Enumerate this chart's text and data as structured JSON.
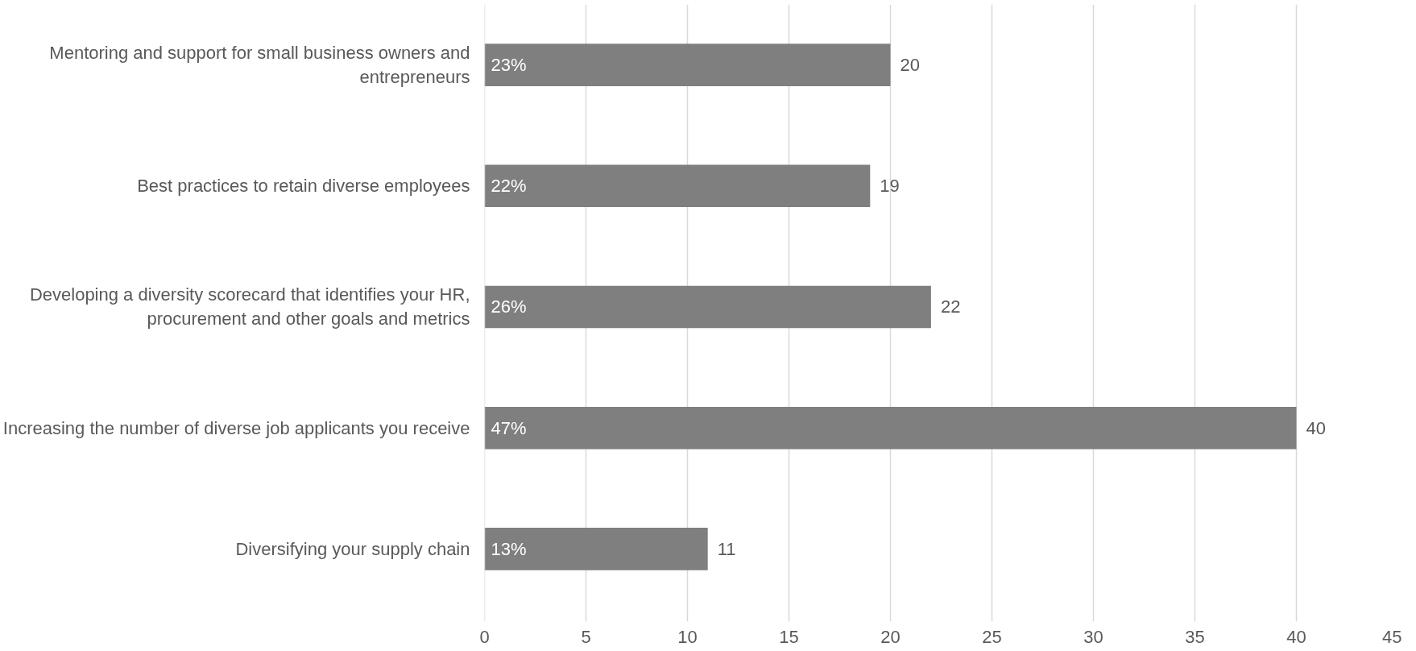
{
  "chart_data": {
    "type": "bar",
    "orientation": "horizontal",
    "categories": [
      "Mentoring and support for small business owners and entrepreneurs",
      "Best practices to retain diverse employees",
      "Developing a diversity scorecard that identifies your HR, procurement and other goals and metrics",
      "Increasing the number of diverse job applicants you receive",
      "Diversifying your supply chain"
    ],
    "values": [
      20,
      19,
      22,
      40,
      11
    ],
    "color": "#7f7f7f",
    "data_labels": true,
    "xlim": [
      0,
      45
    ],
    "xticks": [
      0,
      5,
      10,
      15,
      20,
      25,
      30,
      35,
      40,
      45
    ],
    "grid": "x",
    "annotations": [
      "23%",
      "22%",
      "26%",
      "47%",
      "13%"
    ]
  }
}
